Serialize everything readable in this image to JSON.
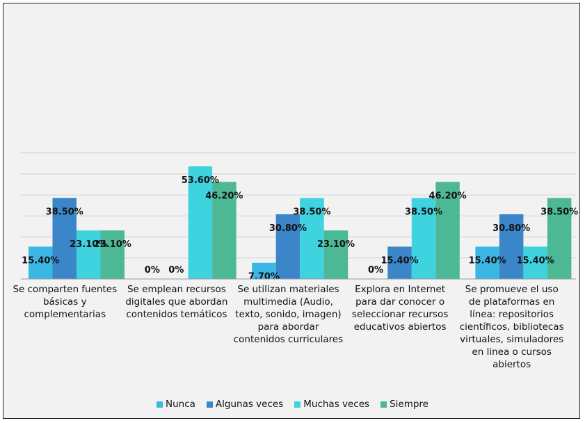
{
  "chart_data": {
    "type": "bar",
    "categories": [
      "Se comparten fuentes básicas y complementarias",
      "Se emplean recursos digitales que abordan contenidos temáticos",
      "Se utilizan materiales multimedia (Audio, texto, sonido, imagen) para abordar contenidos curriculares",
      "Explora en Internet para dar conocer o seleccionar recursos educativos abiertos",
      "Se promueve el uso de plataformas en línea: repositorios científicos, bibliotecas virtuales, simuladores en linea o cursos abiertos"
    ],
    "category_lines": [
      [
        "Se comparten fuentes",
        "básicas y",
        "complementarias"
      ],
      [
        "Se emplean recursos",
        "digitales que abordan",
        "contenidos temáticos"
      ],
      [
        "Se utilizan materiales",
        "multimedia (Audio,",
        "texto, sonido, imagen)",
        "para abordar",
        "contenidos curriculares"
      ],
      [
        "Explora en Internet",
        "para dar conocer o",
        "seleccionar recursos",
        "educativos abiertos"
      ],
      [
        "Se promueve el uso",
        "de plataformas en",
        "línea: repositorios",
        "científicos, bibliotecas",
        "virtuales, simuladores",
        "en linea o cursos",
        "abiertos"
      ]
    ],
    "series": [
      {
        "name": "Nunca",
        "color": "#3bb7e6",
        "values": [
          15.4,
          0,
          7.7,
          0,
          15.4
        ],
        "labels": [
          "15.40%",
          "0%",
          "7.70%",
          "0%",
          "15.40%"
        ]
      },
      {
        "name": "Algunas veces",
        "color": "#3a86c8",
        "values": [
          38.5,
          0,
          30.8,
          15.4,
          30.8
        ],
        "labels": [
          "38.50%",
          "0%",
          "30.80%",
          "15.40%",
          "30.80%"
        ]
      },
      {
        "name": "Muchas veces",
        "color": "#3ed3df",
        "values": [
          23.1,
          53.6,
          38.5,
          38.5,
          15.4
        ],
        "labels": [
          "23.10%",
          "53.60%",
          "38.50%",
          "38.50%",
          "15.40%"
        ]
      },
      {
        "name": "Siempre",
        "color": "#4cb895",
        "values": [
          23.1,
          46.2,
          23.1,
          46.2,
          38.5
        ],
        "labels": [
          "23.10%",
          "46.20%",
          "23.10%",
          "46.20%",
          "38.50%"
        ]
      }
    ],
    "ylim": [
      0,
      60
    ],
    "grid": true,
    "legend_position": "bottom"
  }
}
